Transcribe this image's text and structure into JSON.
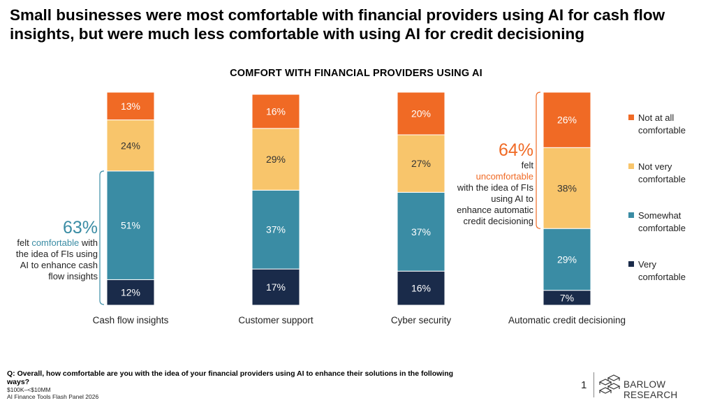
{
  "headline": "Small businesses were most comfortable with financial providers using AI for cash flow insights, but were much less comfortable with using AI for credit decisioning",
  "colors": {
    "not_at_all": "#F06A25",
    "not_very": "#F8C56B",
    "somewhat": "#3A8CA4",
    "very": "#1A2B4A",
    "accent_blue": "#3A8CA4",
    "accent_orange": "#F06A25"
  },
  "chart_data": {
    "type": "bar",
    "stacked": true,
    "title": "COMFORT WITH FINANCIAL PROVIDERS USING AI",
    "categories": [
      "Cash flow insights",
      "Customer support",
      "Cyber security",
      "Automatic credit decisioning"
    ],
    "series": [
      {
        "name": "Very comfortable",
        "key": "very",
        "values": [
          12,
          17,
          16,
          7
        ]
      },
      {
        "name": "Somewhat comfortable",
        "key": "somewhat",
        "values": [
          51,
          37,
          37,
          29
        ]
      },
      {
        "name": "Not very comfortable",
        "key": "not_very",
        "values": [
          24,
          29,
          27,
          38
        ]
      },
      {
        "name": "Not at all comfortable",
        "key": "not_at_all",
        "values": [
          13,
          16,
          20,
          26
        ]
      }
    ],
    "value_suffix": "%",
    "ylim": [
      0,
      100
    ],
    "legend_position": "right"
  },
  "legend": [
    {
      "key": "not_at_all",
      "label": "Not at all comfortable"
    },
    {
      "key": "not_very",
      "label": "Not very comfortable"
    },
    {
      "key": "somewhat",
      "label": "Somewhat comfortable"
    },
    {
      "key": "very",
      "label": "Very comfortable"
    }
  ],
  "callouts": {
    "comfortable": {
      "percent": "63%",
      "prefix": "felt ",
      "highlight": "comfortable",
      "rest": "with the idea of FIs using AI to enhance cash flow insights"
    },
    "uncomfortable": {
      "percent": "64%",
      "prefix": "felt",
      "highlight": "uncomfortable",
      "rest": "with the idea of FIs using AI to enhance automatic credit decisioning"
    }
  },
  "footer": {
    "question": "Q: Overall, how comfortable are you with the idea of your financial providers using AI to enhance their solutions in the following ways?",
    "segment": "$100K–<$10MM",
    "source": "AI Finance Tools Flash Panel 2026",
    "page_number": "1",
    "brand": "BARLOW RESEARCH"
  }
}
